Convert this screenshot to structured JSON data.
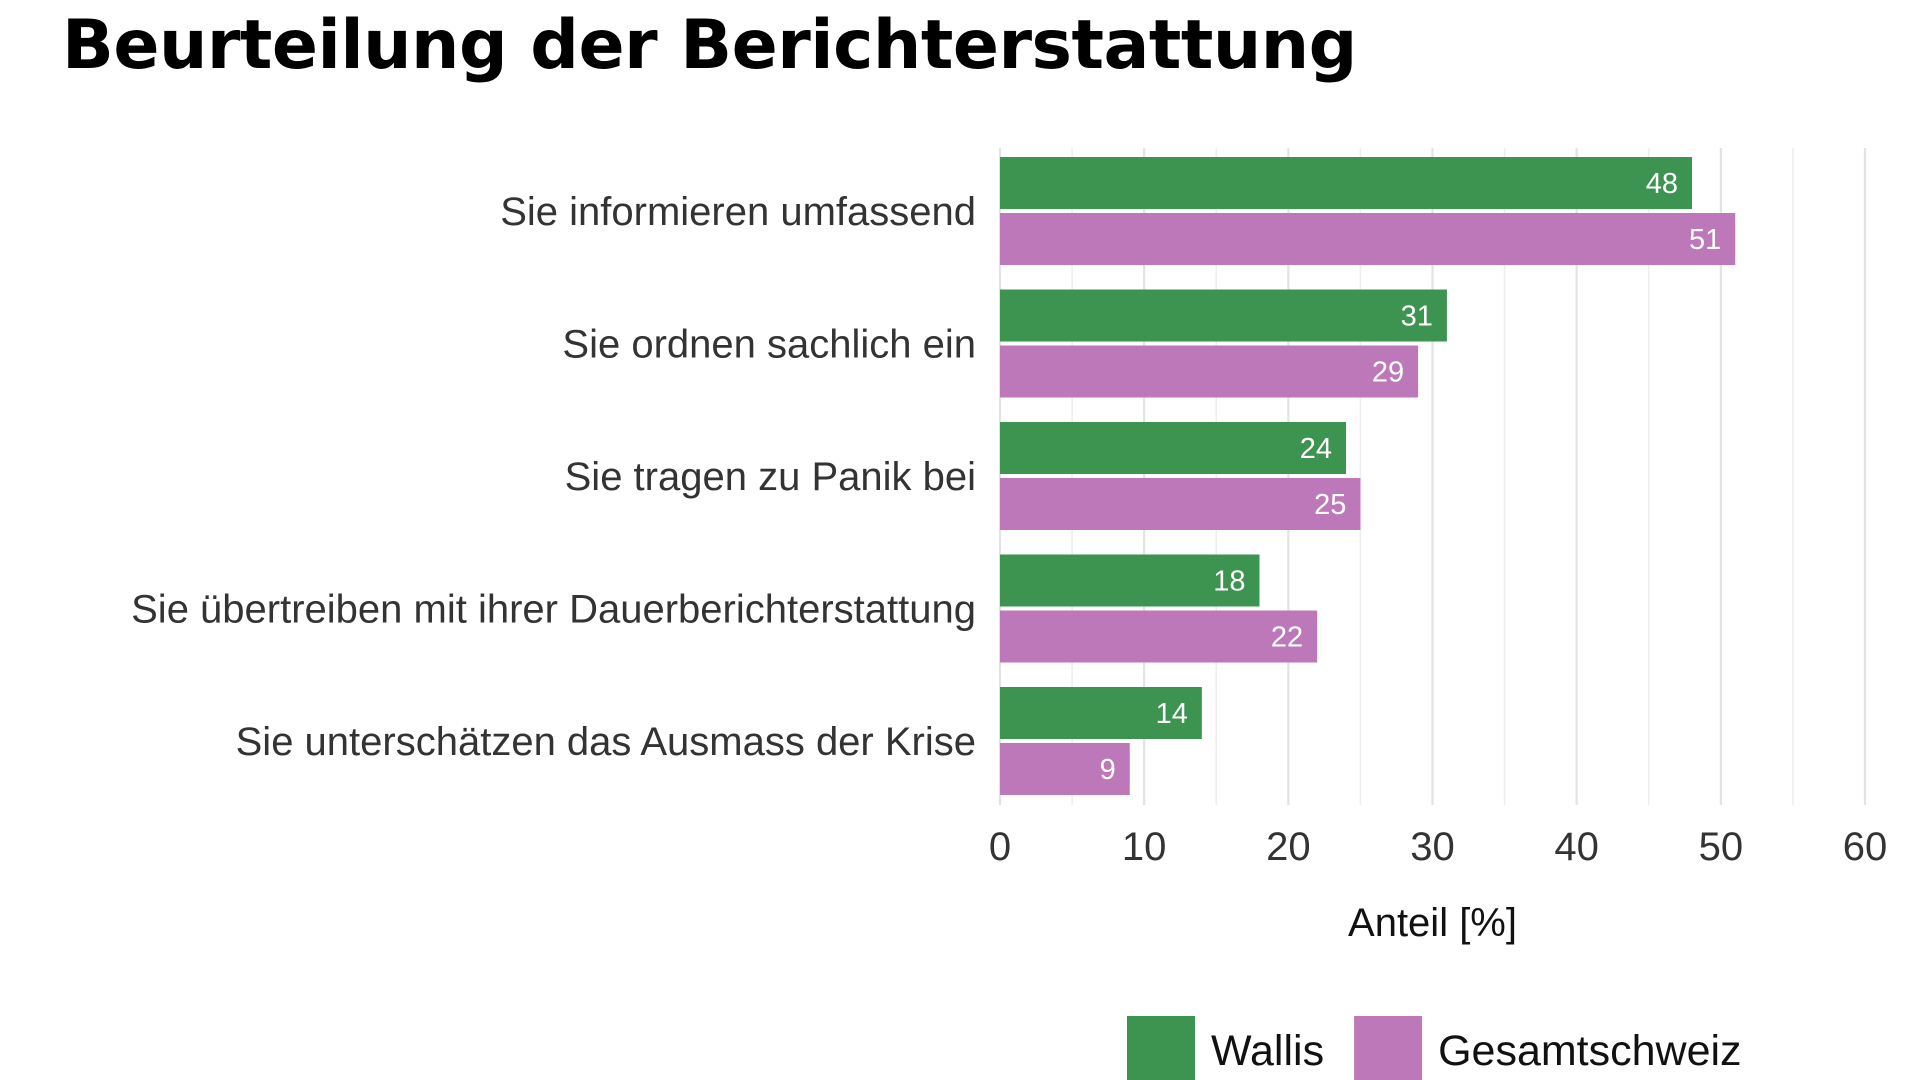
{
  "chart_data": {
    "type": "bar",
    "orientation": "horizontal",
    "title": "Beurteilung der Berichterstattung",
    "categories": [
      "Sie informieren umfassend",
      "Sie ordnen sachlich ein",
      "Sie tragen zu Panik bei",
      "Sie übertreiben mit ihrer Dauerberichterstattung",
      "Sie unterschätzen das Ausmass der Krise"
    ],
    "series": [
      {
        "name": "Wallis",
        "color": "#3d9451",
        "values": [
          48,
          31,
          24,
          18,
          14
        ]
      },
      {
        "name": "Gesamtschweiz",
        "color": "#bd78b9",
        "values": [
          51,
          29,
          25,
          22,
          9
        ]
      }
    ],
    "xlabel": "Anteil [%]",
    "ylabel": "",
    "xlim": [
      0,
      60
    ],
    "xticks": [
      0,
      10,
      20,
      30,
      40,
      50,
      60
    ],
    "grid": true,
    "legend_position": "bottom"
  }
}
